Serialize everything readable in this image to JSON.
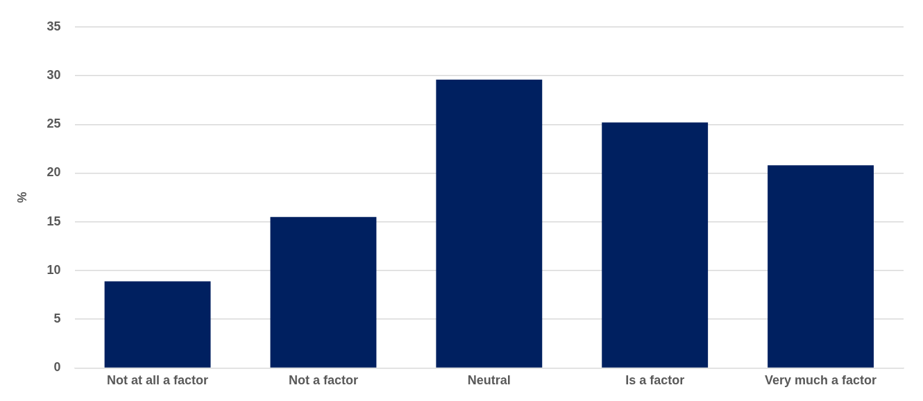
{
  "chart_data": {
    "type": "bar",
    "ylabel": "%",
    "categories": [
      "Not at all a factor",
      "Not a factor",
      "Neutral",
      "Is a factor",
      "Very much a factor"
    ],
    "values": [
      8.9,
      15.5,
      29.6,
      25.2,
      20.8
    ],
    "color": "#002060",
    "ylim": [
      0,
      35
    ],
    "yticks": [
      0,
      5,
      10,
      15,
      20,
      25,
      30,
      35
    ],
    "grid": "y",
    "legend": false
  }
}
